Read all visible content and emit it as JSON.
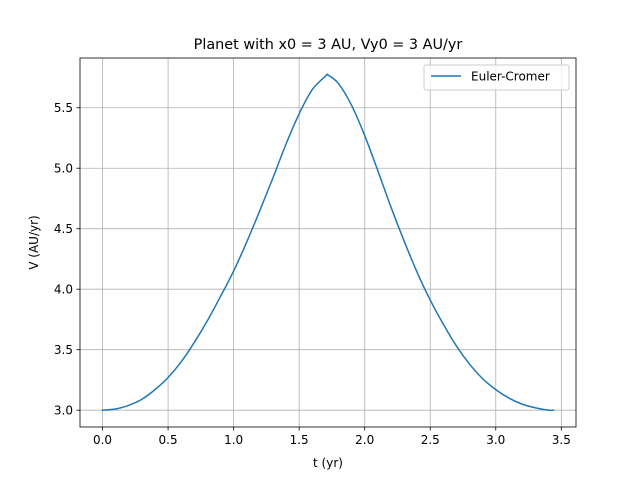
{
  "chart_data": {
    "type": "line",
    "title": "Planet with x0 = 3 AU, Vy0 = 3 AU/yr",
    "xlabel": "t (yr)",
    "ylabel": "V (AU/yr)",
    "xlim": [
      -0.172,
      3.612
    ],
    "ylim": [
      2.861,
      5.911
    ],
    "xticks": [
      0.0,
      0.5,
      1.0,
      1.5,
      2.0,
      2.5,
      3.0,
      3.5
    ],
    "xtick_labels": [
      "0.0",
      "0.5",
      "1.0",
      "1.5",
      "2.0",
      "2.5",
      "3.0",
      "3.5"
    ],
    "yticks": [
      3.0,
      3.5,
      4.0,
      4.5,
      5.0,
      5.5
    ],
    "ytick_labels": [
      "3.0",
      "3.5",
      "4.0",
      "4.5",
      "5.0",
      "5.5"
    ],
    "grid": true,
    "legend_position": "top-right",
    "series": [
      {
        "name": "Euler-Cromer",
        "color": "#1f77b4",
        "x": [
          0.0,
          0.1,
          0.2,
          0.3,
          0.4,
          0.5,
          0.6,
          0.7,
          0.8,
          0.9,
          1.0,
          1.1,
          1.2,
          1.3,
          1.4,
          1.5,
          1.6,
          1.7,
          1.72,
          1.8,
          1.9,
          2.0,
          2.1,
          2.2,
          2.3,
          2.4,
          2.5,
          2.6,
          2.7,
          2.8,
          2.9,
          3.0,
          3.1,
          3.2,
          3.3,
          3.4,
          3.44
        ],
        "y": [
          3.0,
          3.01,
          3.04,
          3.09,
          3.17,
          3.27,
          3.4,
          3.56,
          3.74,
          3.94,
          4.15,
          4.39,
          4.65,
          4.92,
          5.2,
          5.45,
          5.65,
          5.76,
          5.77,
          5.7,
          5.52,
          5.27,
          4.98,
          4.68,
          4.4,
          4.14,
          3.91,
          3.71,
          3.53,
          3.38,
          3.26,
          3.17,
          3.1,
          3.05,
          3.02,
          3.0,
          3.0
        ]
      }
    ]
  }
}
